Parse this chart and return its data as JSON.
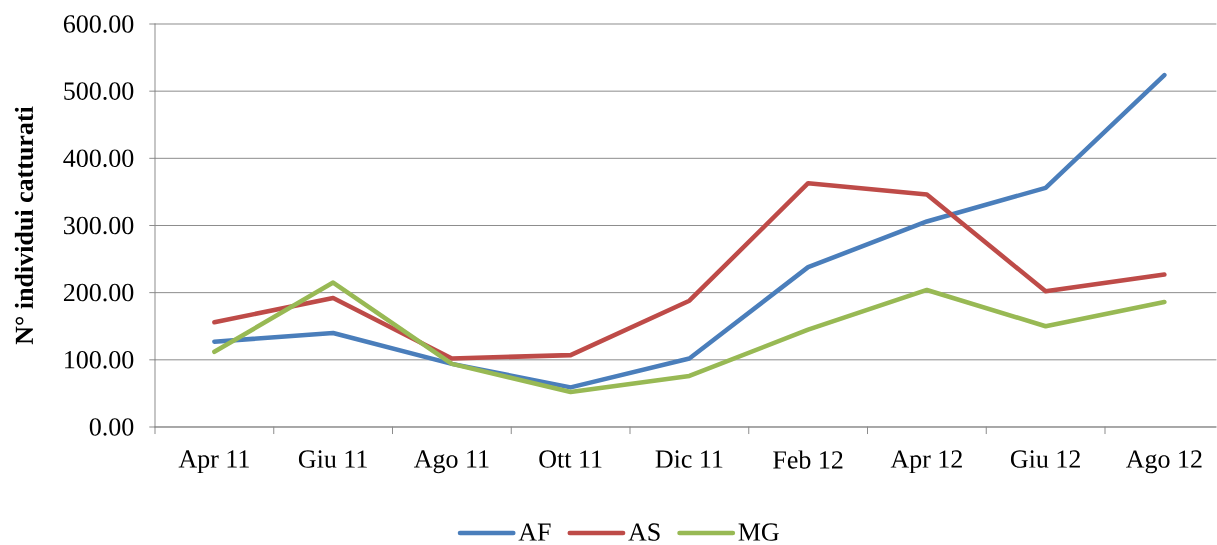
{
  "chart_data": {
    "type": "line",
    "ylabel": "N° individui catturati",
    "categories": [
      "Apr 11",
      "Giu 11",
      "Ago 11",
      "Ott 11",
      "Dic 11",
      "Feb 12",
      "Apr 12",
      "Giu 12",
      "Ago 12"
    ],
    "series": [
      {
        "name": "AF",
        "color": "#4a7ebb",
        "values": [
          127,
          140,
          94,
          59,
          102,
          238,
          306,
          356,
          524
        ]
      },
      {
        "name": "AS",
        "color": "#be4b48",
        "values": [
          156,
          192,
          102,
          107,
          188,
          363,
          346,
          202,
          227
        ]
      },
      {
        "name": "MG",
        "color": "#98b954",
        "values": [
          112,
          215,
          94,
          52,
          76,
          145,
          204,
          150,
          186
        ]
      }
    ],
    "ylim": [
      0,
      600
    ],
    "yticks": [
      {
        "value": 0,
        "label": "0.00"
      },
      {
        "value": 100,
        "label": "100.00"
      },
      {
        "value": 200,
        "label": "200.00"
      },
      {
        "value": 300,
        "label": "300.00"
      },
      {
        "value": 400,
        "label": "400.00"
      },
      {
        "value": 500,
        "label": "500.00"
      },
      {
        "value": 600,
        "label": "600.00"
      }
    ],
    "grid": "y",
    "legend": "bottom",
    "line_style": "solid"
  }
}
